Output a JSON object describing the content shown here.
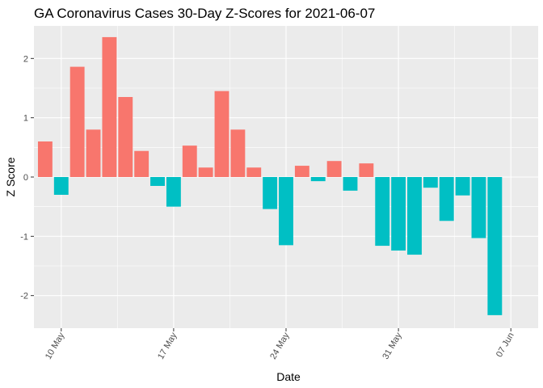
{
  "chart_data": {
    "type": "bar",
    "title": "GA Coronavirus Cases 30-Day Z-Scores for 2021-06-07",
    "xlabel": "Date",
    "ylabel": "Z Score",
    "ylim": [
      -2.55,
      2.55
    ],
    "y_ticks": [
      -2,
      -1,
      0,
      1,
      2
    ],
    "y_tick_labels": [
      "-2",
      "-1",
      "0",
      "1",
      "2"
    ],
    "x_ticks": [
      {
        "label": "10 May",
        "day_index": 2
      },
      {
        "label": "17 May",
        "day_index": 9
      },
      {
        "label": "24 May",
        "day_index": 16
      },
      {
        "label": "31 May",
        "day_index": 23
      },
      {
        "label": "07 Jun",
        "day_index": 30
      }
    ],
    "x_day_range": [
      0.3,
      31.7
    ],
    "colors": {
      "positive": "#F8766D",
      "negative": "#00BFC4",
      "panel": "#EBEBEB",
      "grid_major": "#FFFFFF",
      "tick_text": "#4D4D4D"
    },
    "bars": [
      {
        "day_index": 1,
        "date": "2021-05-09",
        "value": 0.6
      },
      {
        "day_index": 2,
        "date": "2021-05-10",
        "value": -0.3
      },
      {
        "day_index": 3,
        "date": "2021-05-11",
        "value": 1.86
      },
      {
        "day_index": 4,
        "date": "2021-05-12",
        "value": 0.8
      },
      {
        "day_index": 5,
        "date": "2021-05-13",
        "value": 2.36
      },
      {
        "day_index": 6,
        "date": "2021-05-14",
        "value": 1.35
      },
      {
        "day_index": 7,
        "date": "2021-05-15",
        "value": 0.44
      },
      {
        "day_index": 8,
        "date": "2021-05-16",
        "value": -0.15
      },
      {
        "day_index": 9,
        "date": "2021-05-17",
        "value": -0.5
      },
      {
        "day_index": 10,
        "date": "2021-05-18",
        "value": 0.53
      },
      {
        "day_index": 11,
        "date": "2021-05-19",
        "value": 0.16
      },
      {
        "day_index": 12,
        "date": "2021-05-20",
        "value": 1.45
      },
      {
        "day_index": 13,
        "date": "2021-05-21",
        "value": 0.8
      },
      {
        "day_index": 14,
        "date": "2021-05-22",
        "value": 0.16
      },
      {
        "day_index": 15,
        "date": "2021-05-23",
        "value": -0.54
      },
      {
        "day_index": 16,
        "date": "2021-05-24",
        "value": -1.15
      },
      {
        "day_index": 17,
        "date": "2021-05-25",
        "value": 0.19
      },
      {
        "day_index": 18,
        "date": "2021-05-26",
        "value": -0.07
      },
      {
        "day_index": 19,
        "date": "2021-05-27",
        "value": 0.27
      },
      {
        "day_index": 20,
        "date": "2021-05-28",
        "value": -0.23
      },
      {
        "day_index": 21,
        "date": "2021-05-29",
        "value": 0.23
      },
      {
        "day_index": 22,
        "date": "2021-05-30",
        "value": -1.16
      },
      {
        "day_index": 23,
        "date": "2021-05-31",
        "value": -1.24
      },
      {
        "day_index": 24,
        "date": "2021-06-01",
        "value": -1.31
      },
      {
        "day_index": 25,
        "date": "2021-06-02",
        "value": -0.18
      },
      {
        "day_index": 26,
        "date": "2021-06-03",
        "value": -0.74
      },
      {
        "day_index": 27,
        "date": "2021-06-04",
        "value": -0.31
      },
      {
        "day_index": 28,
        "date": "2021-06-05",
        "value": -1.03
      },
      {
        "day_index": 29,
        "date": "2021-06-06",
        "value": -2.33
      }
    ]
  }
}
